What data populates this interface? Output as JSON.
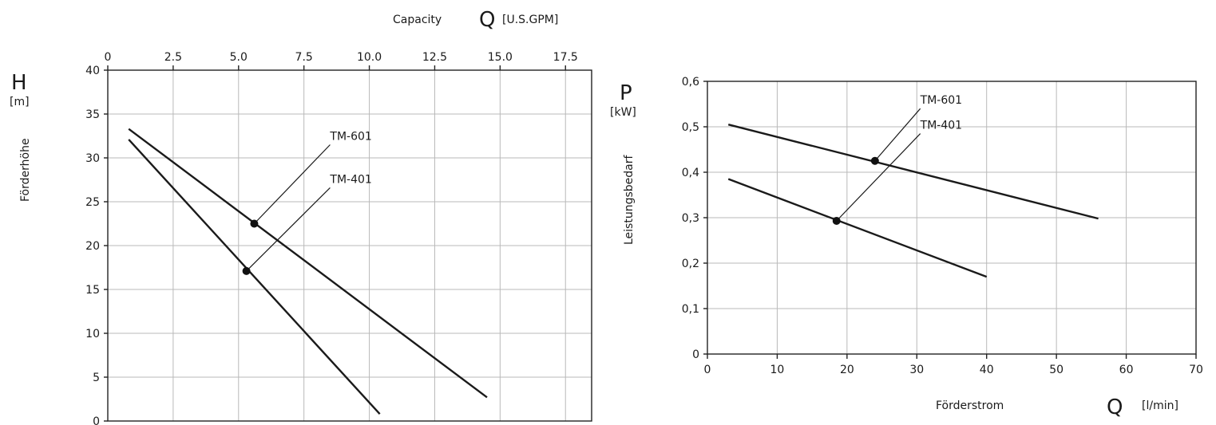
{
  "chart_data": [
    {
      "type": "line",
      "y_symbol": "H",
      "y_unit": "[m]",
      "ylabel": "Förderhöhe",
      "top_axis_label": "Capacity",
      "top_axis_symbol": "Q",
      "top_axis_unit": "[U.S.GPM]",
      "top_ticks": [
        "0",
        "2.5",
        "5.0",
        "7.5",
        "10.0",
        "12.5",
        "15.0",
        "17.5"
      ],
      "top_tick_values": [
        0,
        2.5,
        5,
        7.5,
        10,
        12.5,
        15,
        17.5
      ],
      "xlim": [
        0,
        18.5
      ],
      "ylim": [
        0,
        40
      ],
      "y_ticks": [
        "0",
        "5",
        "10",
        "15",
        "20",
        "25",
        "30",
        "35",
        "40"
      ],
      "y_tick_values": [
        0,
        5,
        10,
        15,
        20,
        25,
        30,
        35,
        40
      ],
      "grid": true,
      "series": [
        {
          "name": "TM-601",
          "x": [
            0.8,
            14.5
          ],
          "y": [
            33.3,
            2.7
          ],
          "marker": [
            5.6,
            22.5
          ],
          "label_anchor": [
            8.5,
            31.5
          ]
        },
        {
          "name": "TM-401",
          "x": [
            0.8,
            10.4
          ],
          "y": [
            32.1,
            0.8
          ],
          "marker": [
            5.3,
            17.1
          ],
          "label_anchor": [
            8.5,
            26.6
          ]
        }
      ]
    },
    {
      "type": "line",
      "y_symbol": "P",
      "y_unit": "[kW]",
      "ylabel": "Leistungsbedarf",
      "xlabel": "Förderstrom",
      "x_symbol": "Q",
      "x_unit": "[l/min]",
      "xlim": [
        0,
        70
      ],
      "ylim": [
        0,
        0.6
      ],
      "x_ticks": [
        "0",
        "10",
        "20",
        "30",
        "40",
        "50",
        "60",
        "70"
      ],
      "x_tick_values": [
        0,
        10,
        20,
        30,
        40,
        50,
        60,
        70
      ],
      "y_ticks": [
        "0",
        "0,1",
        "0,2",
        "0,3",
        "0,4",
        "0,5",
        "0,6"
      ],
      "y_tick_values": [
        0,
        0.1,
        0.2,
        0.3,
        0.4,
        0.5,
        0.6
      ],
      "grid": true,
      "series": [
        {
          "name": "TM-601",
          "x": [
            3,
            56
          ],
          "y": [
            0.505,
            0.298
          ],
          "marker": [
            24,
            0.425
          ],
          "label_anchor": [
            30.5,
            0.54
          ]
        },
        {
          "name": "TM-401",
          "x": [
            3,
            40
          ],
          "y": [
            0.385,
            0.17
          ],
          "marker": [
            18.5,
            0.293
          ],
          "label_anchor": [
            30.5,
            0.485
          ]
        }
      ]
    }
  ]
}
